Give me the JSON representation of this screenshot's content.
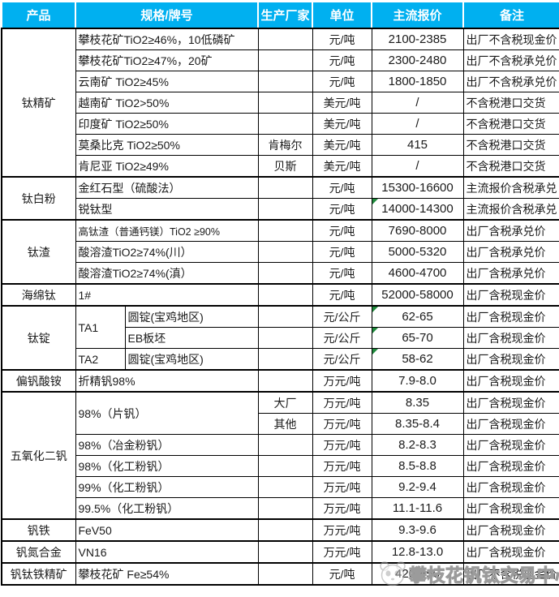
{
  "table": {
    "columns": [
      "产品",
      "规格/牌号",
      "生产厂家",
      "单位",
      "主流报价",
      "备注"
    ],
    "header_bg": "#00b0f0",
    "header_text_color": "#ffffff",
    "flag_color": "#1f8a3c",
    "rows": [
      {
        "cells": [
          {
            "n": "product",
            "t": "钛精矿",
            "rs": 7
          },
          {
            "n": "spec",
            "t": "攀枝花矿TiO2≥46%，10低磷矿",
            "cs": 2
          },
          {
            "n": "manufacturer",
            "t": ""
          },
          {
            "n": "unit",
            "t": "元/吨"
          },
          {
            "n": "price",
            "t": "2100-2385"
          },
          {
            "n": "note",
            "t": "出厂不含税现金价"
          }
        ]
      },
      {
        "cells": [
          {
            "n": "spec",
            "t": "攀枝花矿TiO2≥47%，20矿",
            "cs": 2
          },
          {
            "n": "manufacturer",
            "t": ""
          },
          {
            "n": "unit",
            "t": "元/吨"
          },
          {
            "n": "price",
            "t": "2300-2480"
          },
          {
            "n": "note",
            "t": "出厂不含税承兑价"
          }
        ]
      },
      {
        "cells": [
          {
            "n": "spec",
            "t": "云南矿 TiO2≥45%",
            "cs": 2
          },
          {
            "n": "manufacturer",
            "t": ""
          },
          {
            "n": "unit",
            "t": "元/吨"
          },
          {
            "n": "price",
            "t": "1800-1850"
          },
          {
            "n": "note",
            "t": "出厂不含税承兑价"
          }
        ]
      },
      {
        "cells": [
          {
            "n": "spec",
            "t": "越南矿 TiO2>50%",
            "cs": 2
          },
          {
            "n": "manufacturer",
            "t": ""
          },
          {
            "n": "unit",
            "t": "美元/吨"
          },
          {
            "n": "price",
            "t": "/"
          },
          {
            "n": "note",
            "t": "不含税港口交货"
          }
        ]
      },
      {
        "cells": [
          {
            "n": "spec",
            "t": "印度矿 TiO2≥50%",
            "cs": 2
          },
          {
            "n": "manufacturer",
            "t": ""
          },
          {
            "n": "unit",
            "t": "美元/吨"
          },
          {
            "n": "price",
            "t": "/"
          },
          {
            "n": "note",
            "t": "不含税港口交货"
          }
        ]
      },
      {
        "cells": [
          {
            "n": "spec",
            "t": "莫桑比克 TiO2≥50%",
            "cs": 2
          },
          {
            "n": "manufacturer",
            "t": "肯梅尔"
          },
          {
            "n": "unit",
            "t": "美元/吨"
          },
          {
            "n": "price",
            "t": "415"
          },
          {
            "n": "note",
            "t": "不含税港口交货"
          }
        ]
      },
      {
        "cells": [
          {
            "n": "spec",
            "t": "肯尼亚 TiO2≥49%",
            "cs": 2
          },
          {
            "n": "manufacturer",
            "t": "贝斯"
          },
          {
            "n": "unit",
            "t": "美元/吨"
          },
          {
            "n": "price",
            "t": "/"
          },
          {
            "n": "note",
            "t": "不含税港口交货"
          }
        ]
      },
      {
        "g": true,
        "cells": [
          {
            "n": "product",
            "t": "钛白粉",
            "rs": 2
          },
          {
            "n": "spec",
            "t": "金红石型（硫酸法）",
            "cs": 2
          },
          {
            "n": "manufacturer",
            "t": ""
          },
          {
            "n": "unit",
            "t": "元/吨"
          },
          {
            "n": "price",
            "t": "15300-16600"
          },
          {
            "n": "note",
            "t": "主流报价含税承兑"
          }
        ]
      },
      {
        "cells": [
          {
            "n": "spec",
            "t": "锐钛型",
            "cs": 2
          },
          {
            "n": "manufacturer",
            "t": ""
          },
          {
            "n": "unit",
            "t": "元/吨"
          },
          {
            "n": "price",
            "t": "14000-14300",
            "flag": true
          },
          {
            "n": "note",
            "t": "主流报价含税承兑"
          }
        ]
      },
      {
        "g": true,
        "cells": [
          {
            "n": "product",
            "t": "钛渣",
            "rs": 3
          },
          {
            "n": "spec",
            "t": "高钛渣（普通钙镁）TiO2 ≥90%",
            "cs": 2,
            "small": true
          },
          {
            "n": "manufacturer",
            "t": ""
          },
          {
            "n": "unit",
            "t": "元/吨"
          },
          {
            "n": "price",
            "t": "7690-8000"
          },
          {
            "n": "note",
            "t": "出厂含税承兑价"
          }
        ]
      },
      {
        "cells": [
          {
            "n": "spec",
            "t": "酸溶渣TiO2≥74%(川）",
            "cs": 2
          },
          {
            "n": "manufacturer",
            "t": ""
          },
          {
            "n": "unit",
            "t": "元/吨"
          },
          {
            "n": "price",
            "t": "5000-5320"
          },
          {
            "n": "note",
            "t": "出厂含税承兑价"
          }
        ]
      },
      {
        "cells": [
          {
            "n": "spec",
            "t": "酸溶渣TiO2≥74%(滇）",
            "cs": 2
          },
          {
            "n": "manufacturer",
            "t": ""
          },
          {
            "n": "unit",
            "t": "元/吨"
          },
          {
            "n": "price",
            "t": "4600-4700"
          },
          {
            "n": "note",
            "t": "出厂含税承兑价"
          }
        ]
      },
      {
        "g": true,
        "cells": [
          {
            "n": "product",
            "t": "海绵钛"
          },
          {
            "n": "spec",
            "t": "1#",
            "cs": 2
          },
          {
            "n": "manufacturer",
            "t": ""
          },
          {
            "n": "unit",
            "t": "元/吨"
          },
          {
            "n": "price",
            "t": "52000-58000"
          },
          {
            "n": "note",
            "t": "出厂含税现金价"
          }
        ]
      },
      {
        "g": true,
        "cells": [
          {
            "n": "product",
            "t": "钛锭",
            "rs": 3
          },
          {
            "n": "spec",
            "t": "TA1",
            "rs": 2
          },
          {
            "n": "spec-sub",
            "t": "圆锭(宝鸡地区)"
          },
          {
            "n": "manufacturer",
            "t": ""
          },
          {
            "n": "unit",
            "t": "元/公斤"
          },
          {
            "n": "price",
            "t": "62-65",
            "flag": true
          },
          {
            "n": "note",
            "t": "出厂含税现金价"
          }
        ]
      },
      {
        "cells": [
          {
            "n": "spec-sub",
            "t": "EB板坯"
          },
          {
            "n": "manufacturer",
            "t": ""
          },
          {
            "n": "unit",
            "t": "元/公斤"
          },
          {
            "n": "price",
            "t": "65-70",
            "flag": true
          },
          {
            "n": "note",
            "t": "出厂含税现金价"
          }
        ]
      },
      {
        "cells": [
          {
            "n": "spec",
            "t": "TA2"
          },
          {
            "n": "spec-sub",
            "t": "圆锭(宝鸡地区)"
          },
          {
            "n": "manufacturer",
            "t": ""
          },
          {
            "n": "unit",
            "t": "元/公斤"
          },
          {
            "n": "price",
            "t": "58-62",
            "flag": true
          },
          {
            "n": "note",
            "t": "出厂含税现金价"
          }
        ]
      },
      {
        "g": true,
        "cells": [
          {
            "n": "product",
            "t": "偏钒酸铵"
          },
          {
            "n": "spec",
            "t": "折精钒98%",
            "cs": 2
          },
          {
            "n": "manufacturer",
            "t": ""
          },
          {
            "n": "unit",
            "t": "万元/吨"
          },
          {
            "n": "price",
            "t": "7.9-8.0"
          },
          {
            "n": "note",
            "t": "出厂含税现金价"
          }
        ]
      },
      {
        "g": true,
        "cells": [
          {
            "n": "product",
            "t": "五氧化二钒",
            "rs": 6
          },
          {
            "n": "spec",
            "t": "98%（片钒）",
            "cs": 2,
            "rs": 2
          },
          {
            "n": "manufacturer",
            "t": "大厂"
          },
          {
            "n": "unit",
            "t": "万元/吨"
          },
          {
            "n": "price",
            "t": "8.35"
          },
          {
            "n": "note",
            "t": "出厂含税现金价"
          }
        ]
      },
      {
        "cells": [
          {
            "n": "manufacturer",
            "t": "其他"
          },
          {
            "n": "unit",
            "t": "万元/吨"
          },
          {
            "n": "price",
            "t": "8.35-8.4"
          },
          {
            "n": "note",
            "t": "出厂含税现金价"
          }
        ]
      },
      {
        "cells": [
          {
            "n": "spec",
            "t": "98%（冶金粉钒）",
            "cs": 2
          },
          {
            "n": "manufacturer",
            "t": ""
          },
          {
            "n": "unit",
            "t": "万元/吨"
          },
          {
            "n": "price",
            "t": "8.2-8.3"
          },
          {
            "n": "note",
            "t": "出厂含税现金价"
          }
        ]
      },
      {
        "cells": [
          {
            "n": "spec",
            "t": "98%（化工粉钒）",
            "cs": 2
          },
          {
            "n": "manufacturer",
            "t": ""
          },
          {
            "n": "unit",
            "t": "万元/吨"
          },
          {
            "n": "price",
            "t": "8.5-8.8"
          },
          {
            "n": "note",
            "t": "出厂含税现金价"
          }
        ]
      },
      {
        "cells": [
          {
            "n": "spec",
            "t": "99%（化工粉钒）",
            "cs": 2
          },
          {
            "n": "manufacturer",
            "t": ""
          },
          {
            "n": "unit",
            "t": "万元/吨"
          },
          {
            "n": "price",
            "t": "9.2-9.4"
          },
          {
            "n": "note",
            "t": "出厂含税现金价"
          }
        ]
      },
      {
        "cells": [
          {
            "n": "spec",
            "t": "99.5%（化工粉钒）",
            "cs": 2
          },
          {
            "n": "manufacturer",
            "t": ""
          },
          {
            "n": "unit",
            "t": "万元/吨"
          },
          {
            "n": "price",
            "t": "11.1-11.6"
          },
          {
            "n": "note",
            "t": "出厂含税现金价"
          }
        ]
      },
      {
        "g": true,
        "cells": [
          {
            "n": "product",
            "t": "钒铁"
          },
          {
            "n": "spec",
            "t": "FeV50",
            "cs": 2
          },
          {
            "n": "manufacturer",
            "t": ""
          },
          {
            "n": "unit",
            "t": "万元/吨"
          },
          {
            "n": "price",
            "t": "9.3-9.6"
          },
          {
            "n": "note",
            "t": "出厂含税现金价"
          }
        ]
      },
      {
        "g": true,
        "cells": [
          {
            "n": "product",
            "t": "钒氮合金"
          },
          {
            "n": "spec",
            "t": "VN16",
            "cs": 2
          },
          {
            "n": "manufacturer",
            "t": ""
          },
          {
            "n": "unit",
            "t": "万元/吨"
          },
          {
            "n": "price",
            "t": "12.8-13.0"
          },
          {
            "n": "note",
            "t": "出厂含税现金价"
          }
        ]
      },
      {
        "g": true,
        "cells": [
          {
            "n": "product",
            "t": "钒钛铁精矿"
          },
          {
            "n": "spec",
            "t": "攀枝花矿 Fe≥54%",
            "cs": 2
          },
          {
            "n": "manufacturer",
            "t": ""
          },
          {
            "n": "unit",
            "t": "元/吨"
          },
          {
            "n": "price",
            "t": "420-450"
          },
          {
            "n": "note",
            "t": "出厂不含税现金价"
          }
        ]
      }
    ]
  },
  "watermark": {
    "text": "攀枝花钒钛交易中心"
  }
}
